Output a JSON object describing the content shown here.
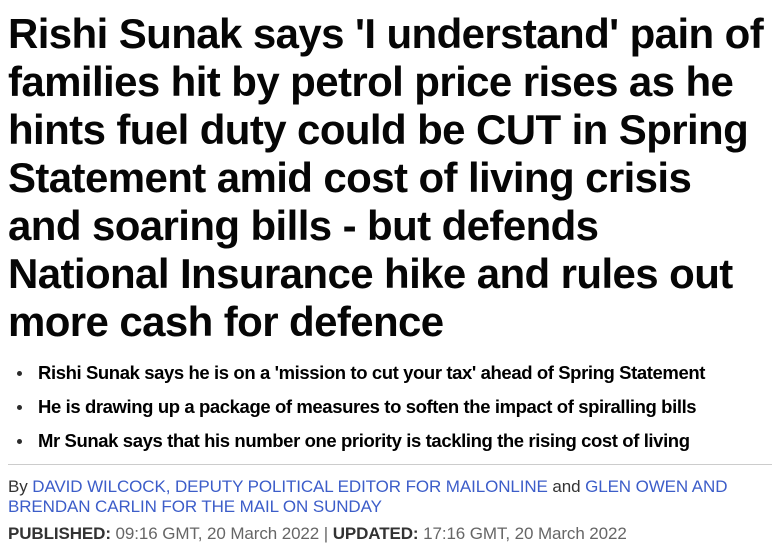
{
  "headline": {
    "lines": [
      "Rishi Sunak says 'I understand' pain of",
      "families hit by petrol price rises as he",
      "hints fuel duty could be CUT in Spring",
      "Statement amid cost of living crisis",
      "and soaring bills - but defends",
      "National Insurance hike and rules out",
      "more cash for defence"
    ]
  },
  "bullets": [
    "Rishi Sunak says he is on a 'mission to cut your tax' ahead of Spring Statement",
    "He is drawing up a package of measures to soften the impact of spiralling bills",
    "Mr Sunak says that his number one priority is tackling the rising cost of living"
  ],
  "byline": {
    "prefix": "By",
    "authors": [
      {
        "name": "DAVID WILCOCK, DEPUTY POLITICAL EDITOR FOR MAILONLINE"
      },
      {
        "name": "GLEN OWEN AND BRENDAN CARLIN FOR THE MAIL ON SUNDAY"
      }
    ],
    "conjunction": "and"
  },
  "meta": {
    "published_label": "PUBLISHED:",
    "published_value": "09:16 GMT, 20 March 2022",
    "separator": "|",
    "updated_label": "UPDATED:",
    "updated_value": "17:16 GMT, 20 March 2022"
  },
  "colors": {
    "headline_text": "#060606",
    "bullet_text": "#000000",
    "link_blue": "#3c5dc9",
    "byline_plain": "#333333",
    "meta_label": "#333333",
    "meta_value": "#666666",
    "divider": "#cccccc",
    "background": "#ffffff"
  }
}
